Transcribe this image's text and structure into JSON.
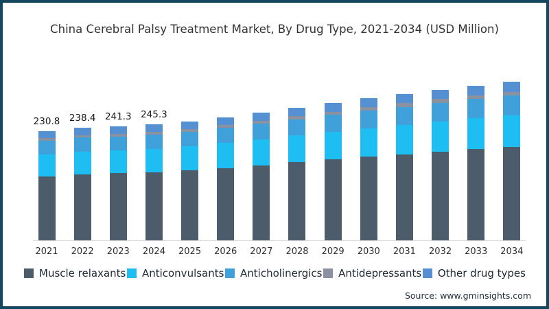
{
  "title": "China Cerebral Palsy Treatment Market, By Drug Type, 2021-2034 (USD Million)",
  "source": "Source: www.gminsights.com",
  "colors": {
    "frame_border": "#12475f",
    "background": "#ffffff",
    "axis_line": "#d9d9d9",
    "title_text": "#333333",
    "tick_text": "#2e2e2e",
    "value_label_text": "#1a1a1a",
    "source_text": "#1f2d3d"
  },
  "legend": [
    {
      "label": "Muscle relaxants",
      "color": "#4d5c6b"
    },
    {
      "label": "Anticonvulsants",
      "color": "#1ebdf2"
    },
    {
      "label": "Anticholinergics",
      "color": "#3fa0da"
    },
    {
      "label": "Antidepressants",
      "color": "#8a92a2"
    },
    {
      "label": "Other drug types",
      "color": "#5590d2"
    }
  ],
  "chart_data": {
    "type": "bar",
    "stacked": true,
    "title": "China Cerebral Palsy Treatment Market, By Drug Type, 2021-2034 (USD Million)",
    "xlabel": "",
    "ylabel": "USD Million",
    "ylim": [
      0,
      336
    ],
    "grid": false,
    "legend_position": "bottom",
    "categories": [
      "2021",
      "2022",
      "2023",
      "2024",
      "2025",
      "2026",
      "2027",
      "2028",
      "2029",
      "2030",
      "2031",
      "2032",
      "2033",
      "2034"
    ],
    "series": [
      {
        "name": "Muscle relaxants",
        "color": "#4d5c6b",
        "values": [
          135.7,
          140.2,
          141.9,
          144.2,
          148.2,
          153.5,
          159.3,
          165.2,
          171.1,
          177.0,
          182.3,
          187.6,
          192.9,
          197.6
        ]
      },
      {
        "name": "Anticonvulsants",
        "color": "#1ebdf2",
        "values": [
          46.6,
          48.2,
          48.7,
          49.6,
          50.9,
          52.7,
          54.7,
          56.8,
          58.8,
          60.8,
          62.6,
          64.4,
          66.3,
          67.9
        ]
      },
      {
        "name": "Anticholinergics",
        "color": "#3fa0da",
        "values": [
          28.4,
          29.3,
          29.7,
          30.2,
          31.0,
          32.1,
          33.3,
          34.6,
          35.8,
          37.0,
          38.1,
          39.2,
          40.3,
          41.3
        ]
      },
      {
        "name": "Antidepressants",
        "color": "#8a92a2",
        "values": [
          5.5,
          5.7,
          5.8,
          5.9,
          6.0,
          6.3,
          6.5,
          6.7,
          7.0,
          7.2,
          7.4,
          7.7,
          7.9,
          8.1
        ]
      },
      {
        "name": "Other drug types",
        "color": "#5590d2",
        "values": [
          14.6,
          15.0,
          15.2,
          15.4,
          15.9,
          16.4,
          17.2,
          17.7,
          18.3,
          19.0,
          19.6,
          20.1,
          20.6,
          21.1
        ]
      }
    ],
    "totals": [
      230.8,
      238.4,
      241.3,
      245.3,
      252,
      261,
      271,
      281,
      291,
      301,
      310,
      319,
      328,
      336
    ],
    "total_labels": [
      "230.8",
      "238.4",
      "241.3",
      "245.3",
      "",
      "",
      "",
      "",
      "",
      "",
      "",
      "",
      "",
      ""
    ]
  }
}
